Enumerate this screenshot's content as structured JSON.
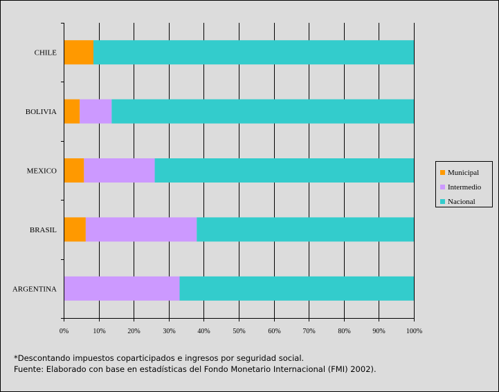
{
  "chart_data": {
    "type": "bar",
    "orientation": "horizontal",
    "stacked": "percent",
    "categories": [
      "CHILE",
      "BOLIVIA",
      "MEXICO",
      "BRASIL",
      "ARGENTINA"
    ],
    "series": [
      {
        "name": "Municipal",
        "color": "#ff9900",
        "values": [
          8.5,
          4.6,
          5.8,
          6.3,
          0
        ]
      },
      {
        "name": "Intermedio",
        "color": "#cc99ff",
        "values": [
          0,
          9.1,
          20.2,
          31.7,
          33.1
        ]
      },
      {
        "name": "Nacional",
        "color": "#33cccc",
        "values": [
          91.5,
          86.3,
          74.0,
          62.0,
          66.9
        ]
      }
    ],
    "xticks": [
      "0%",
      "10%",
      "20%",
      "30%",
      "40%",
      "50%",
      "60%",
      "70%",
      "80%",
      "90%",
      "100%"
    ],
    "xlim": [
      0,
      100
    ],
    "grid": true,
    "legend_position": "right"
  },
  "legend": {
    "items": [
      {
        "label": "Municipal",
        "color": "#ff9900"
      },
      {
        "label": "Intermedio",
        "color": "#cc99ff"
      },
      {
        "label": "Nacional",
        "color": "#33cccc"
      }
    ]
  },
  "footnotes": {
    "line1": "*Descontando impuestos coparticipados e ingresos por seguridad social.",
    "line2": "Fuente: Elaborado con base en estadísticas del Fondo Monetario Internacional (FMI) 2002)."
  }
}
